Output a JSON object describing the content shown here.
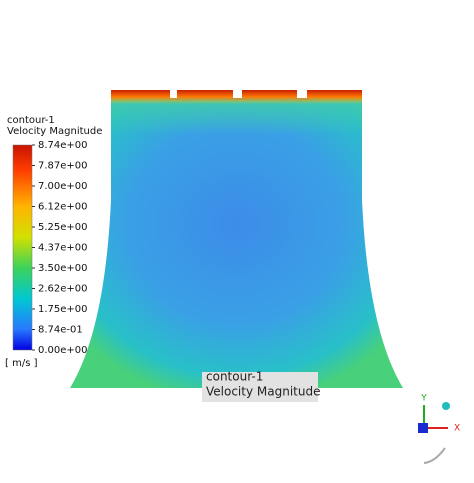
{
  "legend": {
    "title": "contour-1",
    "quantity": "Velocity Magnitude",
    "labels": [
      "8.74e+00",
      "7.87e+00",
      "7.00e+00",
      "6.12e+00",
      "5.25e+00",
      "4.37e+00",
      "3.50e+00",
      "2.62e+00",
      "1.75e+00",
      "8.74e-01",
      "0.00e+00"
    ],
    "unit": "[ m/s ]"
  },
  "annotation": {
    "lines": [
      "contour-1",
      "Velocity Magnitude"
    ]
  },
  "triad": {
    "y": "Y",
    "x": "X"
  }
}
